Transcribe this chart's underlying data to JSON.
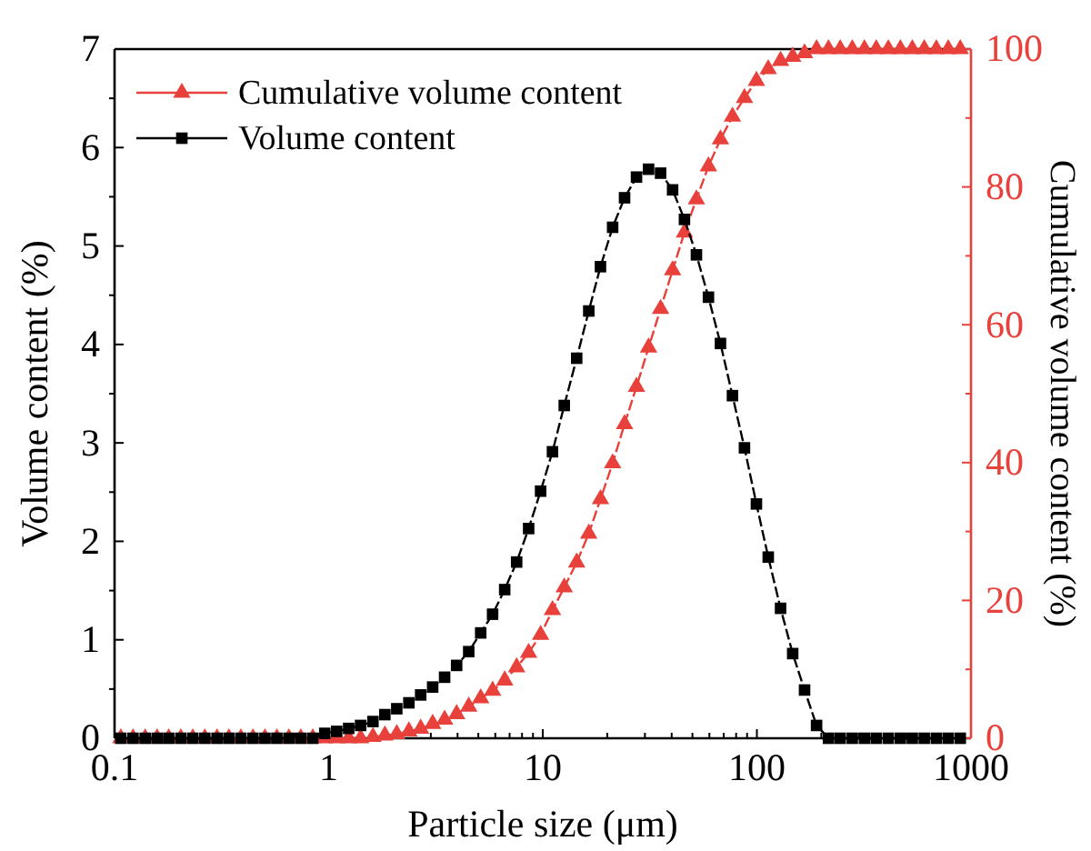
{
  "chart_data": {
    "type": "line",
    "xlabel": "Particle size (μm)",
    "ylabel": "Volume content (%)",
    "y2label": "Cumulative volume content (%)",
    "log": "x",
    "grid": false,
    "legend": "top left",
    "line_style": "dashed",
    "xlim": [
      0.1,
      1000
    ],
    "xticks": [
      0.1,
      {
        "value": 0.2,
        "label": null
      },
      {
        "value": 0.3,
        "label": null
      },
      {
        "value": 0.4,
        "label": null
      },
      {
        "value": 0.5,
        "label": null
      },
      {
        "value": 0.6,
        "label": null
      },
      {
        "value": 0.7,
        "label": null
      },
      {
        "value": 0.8,
        "label": null
      },
      {
        "value": 0.9,
        "label": null
      },
      1,
      {
        "value": 2,
        "label": null
      },
      {
        "value": 3,
        "label": null
      },
      {
        "value": 4,
        "label": null
      },
      {
        "value": 5,
        "label": null
      },
      {
        "value": 6,
        "label": null
      },
      {
        "value": 7,
        "label": null
      },
      {
        "value": 8,
        "label": null
      },
      {
        "value": 9,
        "label": null
      },
      10,
      {
        "value": 20,
        "label": null
      },
      {
        "value": 30,
        "label": null
      },
      {
        "value": 40,
        "label": null
      },
      {
        "value": 50,
        "label": null
      },
      {
        "value": 60,
        "label": null
      },
      {
        "value": 70,
        "label": null
      },
      {
        "value": 80,
        "label": null
      },
      {
        "value": 90,
        "label": null
      },
      100,
      {
        "value": 200,
        "label": null
      },
      {
        "value": 300,
        "label": null
      },
      {
        "value": 400,
        "label": null
      },
      {
        "value": 500,
        "label": null
      },
      {
        "value": 600,
        "label": null
      },
      {
        "value": 700,
        "label": null
      },
      {
        "value": 800,
        "label": null
      },
      {
        "value": 900,
        "label": null
      },
      1000
    ],
    "ylim": [
      0,
      7
    ],
    "yticks": [
      0,
      {
        "value": 0.5,
        "label": null
      },
      1,
      {
        "value": 1.5,
        "label": null
      },
      2,
      {
        "value": 2.5,
        "label": null
      },
      3,
      {
        "value": 3.5,
        "label": null
      },
      4,
      {
        "value": 4.5,
        "label": null
      },
      5,
      {
        "value": 5.5,
        "label": null
      },
      6,
      {
        "value": 6.5,
        "label": null
      },
      7
    ],
    "y2lim": [
      0,
      100
    ],
    "y2ticks": [
      0,
      {
        "value": 10,
        "label": null
      },
      20,
      {
        "value": 30,
        "label": null
      },
      40,
      {
        "value": 50,
        "label": null
      },
      60,
      {
        "value": 70,
        "label": null
      },
      80,
      {
        "value": 90,
        "label": null
      },
      100
    ],
    "x": [
      0.107,
      0.122,
      0.139,
      0.158,
      0.179,
      0.204,
      0.232,
      0.264,
      0.301,
      0.342,
      0.389,
      0.443,
      0.504,
      0.573,
      0.652,
      0.741,
      0.843,
      0.959,
      1.09,
      1.24,
      1.41,
      1.61,
      1.83,
      2.08,
      2.37,
      2.69,
      3.06,
      3.48,
      3.96,
      4.51,
      5.13,
      5.83,
      6.64,
      7.55,
      8.59,
      9.77,
      11.1,
      12.6,
      14.4,
      16.4,
      18.6,
      21.2,
      24.1,
      27.4,
      31.2,
      35.5,
      40.4,
      45.9,
      52.2,
      59.4,
      67.6,
      76.9,
      87.5,
      99.5,
      113,
      129,
      147,
      167,
      190,
      216,
      245,
      279,
      318,
      361,
      411,
      468,
      532,
      605,
      689,
      783,
      891
    ],
    "series": [
      {
        "name": "Cumulative volume content",
        "color": "#e8403a",
        "axis": "y2",
        "marker": "triangle",
        "values": [
          0,
          0,
          0,
          0,
          0,
          0,
          0,
          0,
          0,
          0,
          0,
          0,
          0,
          0,
          0,
          0,
          0,
          0,
          0,
          0,
          0,
          0.2,
          0.4,
          0.6,
          1.0,
          1.4,
          2.1,
          2.7,
          3.5,
          4.6,
          5.8,
          6.9,
          8.4,
          10.3,
          12.4,
          15,
          18.6,
          21.9,
          25.5,
          29.7,
          34.7,
          39.9,
          45.6,
          51.0,
          56.7,
          62.3,
          67.9,
          73.4,
          78.2,
          83.0,
          86.9,
          90.2,
          92.9,
          95.4,
          97.1,
          98.3,
          98.9,
          99.4,
          100,
          100,
          100,
          100,
          100,
          100,
          100,
          100,
          100,
          100,
          100,
          100,
          100
        ]
      },
      {
        "name": "Volume content",
        "color": "#000000",
        "axis": "y",
        "marker": "square",
        "values": [
          0,
          0,
          0,
          0,
          0,
          0,
          0,
          0,
          0,
          0,
          0,
          0,
          0,
          0,
          0,
          0,
          0,
          0.05,
          0.07,
          0.1,
          0.13,
          0.17,
          0.24,
          0.3,
          0.36,
          0.44,
          0.52,
          0.62,
          0.74,
          0.88,
          1.07,
          1.26,
          1.51,
          1.79,
          2.13,
          2.51,
          2.91,
          3.38,
          3.86,
          4.34,
          4.79,
          5.19,
          5.49,
          5.7,
          5.78,
          5.74,
          5.57,
          5.27,
          4.91,
          4.48,
          4.01,
          3.48,
          2.95,
          2.38,
          1.84,
          1.32,
          0.86,
          0.49,
          0.13,
          0,
          0,
          0,
          0,
          0,
          0,
          0,
          0,
          0,
          0,
          0,
          0
        ]
      }
    ]
  }
}
